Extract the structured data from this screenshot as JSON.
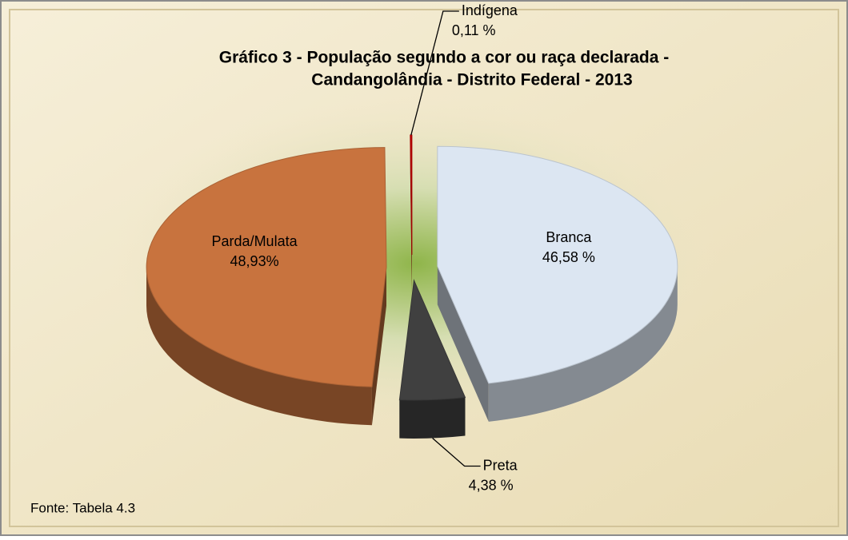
{
  "chart_data": {
    "type": "pie",
    "title": [
      "Gráfico 3 - População segundo a cor ou raça declarada -",
      "Candangolândia - Distrito Federal - 2013"
    ],
    "categories": [
      "Branca",
      "Preta",
      "Parda/Mulata",
      "Indígena"
    ],
    "values": [
      46.58,
      4.38,
      48.93,
      0.11
    ],
    "value_labels": [
      "46,58 %",
      "4,38 %",
      "48,93%",
      "0,11 %"
    ],
    "colors": [
      "#dce6f2",
      "#404040",
      "#c8733e",
      "#c00000"
    ],
    "source": "Fonte: Tabela 4.3"
  }
}
